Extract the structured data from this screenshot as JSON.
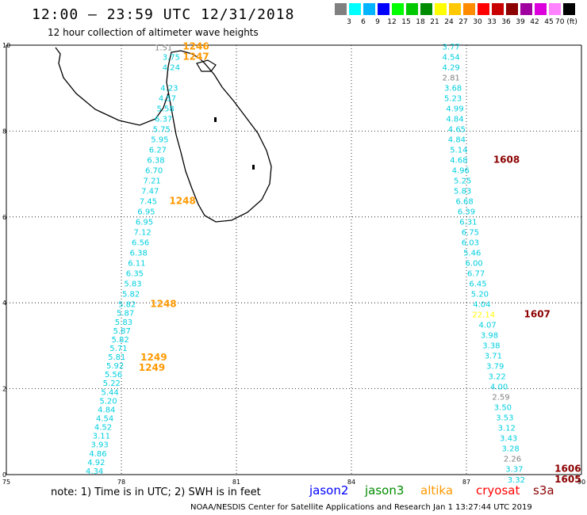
{
  "title": "12:00 – 23:59 UTC 12/31/2018",
  "subtitle": "12 hour collection of altimeter wave heights",
  "scale": {
    "colors": [
      "#808080",
      "#00ffff",
      "#00b4ff",
      "#0000ff",
      "#00ff00",
      "#00c800",
      "#008c00",
      "#ffff00",
      "#ffc800",
      "#ff8c00",
      "#ff0000",
      "#c80000",
      "#8c0000",
      "#a000a0",
      "#dc00dc",
      "#ff82ff",
      "#000000"
    ],
    "labels": [
      "3",
      "6",
      "9",
      "12",
      "15",
      "18",
      "21",
      "24",
      "27",
      "30",
      "33",
      "36",
      "39",
      "42",
      "45",
      "70 (ft)"
    ]
  },
  "map": {
    "lon_ticks": [
      "75",
      "78",
      "81",
      "84",
      "87",
      "90"
    ],
    "lat_ticks": [
      "0",
      "2",
      "4",
      "6",
      "8",
      "10"
    ]
  },
  "tracks": [
    {
      "time": "1246",
      "color": "#ff9900",
      "values": [
        {
          "v": "1.51",
          "lon": 79.1,
          "lat": 9.88,
          "c": "#808080"
        },
        {
          "v": "3.75",
          "lon": 79.3,
          "lat": 9.66,
          "c": "#00cfe0"
        },
        {
          "v": "4.24",
          "lon": 79.3,
          "lat": 9.42,
          "c": "#00cfe0"
        },
        {
          "v": "4.23",
          "lon": 79.25,
          "lat": 8.94,
          "c": "#00cfe0"
        },
        {
          "v": "4.57",
          "lon": 79.2,
          "lat": 8.7,
          "c": "#00cfe0"
        },
        {
          "v": "5.58",
          "lon": 79.15,
          "lat": 8.46,
          "c": "#00cfe0"
        },
        {
          "v": "6.37",
          "lon": 79.1,
          "lat": 8.22,
          "c": "#00cfe0"
        },
        {
          "v": "5.75",
          "lon": 79.05,
          "lat": 7.98,
          "c": "#00cfe0"
        },
        {
          "v": "5.95",
          "lon": 79.0,
          "lat": 7.74,
          "c": "#00cfe0"
        },
        {
          "v": "6.27",
          "lon": 78.95,
          "lat": 7.5,
          "c": "#00cfe0"
        },
        {
          "v": "6.38",
          "lon": 78.9,
          "lat": 7.26,
          "c": "#00cfe0"
        },
        {
          "v": "6.70",
          "lon": 78.85,
          "lat": 7.02,
          "c": "#00cfe0"
        },
        {
          "v": "7.21",
          "lon": 78.8,
          "lat": 6.78,
          "c": "#00cfe0"
        },
        {
          "v": "7.47",
          "lon": 78.75,
          "lat": 6.54,
          "c": "#00cfe0"
        },
        {
          "v": "7.45",
          "lon": 78.7,
          "lat": 6.3,
          "c": "#00cfe0"
        },
        {
          "v": "6.95",
          "lon": 78.65,
          "lat": 6.06,
          "c": "#00cfe0"
        },
        {
          "v": "6.95",
          "lon": 78.6,
          "lat": 5.82,
          "c": "#00cfe0"
        },
        {
          "v": "7.12",
          "lon": 78.55,
          "lat": 5.58,
          "c": "#00cfe0"
        },
        {
          "v": "6.56",
          "lon": 78.5,
          "lat": 5.34,
          "c": "#00cfe0"
        },
        {
          "v": "6.38",
          "lon": 78.45,
          "lat": 5.1,
          "c": "#00cfe0"
        },
        {
          "v": "6.11",
          "lon": 78.4,
          "lat": 4.86,
          "c": "#00cfe0"
        },
        {
          "v": "6.35",
          "lon": 78.35,
          "lat": 4.62,
          "c": "#00cfe0"
        },
        {
          "v": "5.83",
          "lon": 78.3,
          "lat": 4.38,
          "c": "#00cfe0"
        },
        {
          "v": "5.82",
          "lon": 78.25,
          "lat": 4.14,
          "c": "#00cfe0"
        }
      ]
    },
    {
      "time": "1608",
      "color": "#8b0000",
      "values": [
        {
          "v": "3.77",
          "lon": 86.6,
          "lat": 9.9,
          "c": "#00cfe0"
        },
        {
          "v": "4.54",
          "lon": 86.6,
          "lat": 9.66,
          "c": "#00cfe0"
        },
        {
          "v": "4.29",
          "lon": 86.6,
          "lat": 9.42,
          "c": "#00cfe0"
        },
        {
          "v": "2.81",
          "lon": 86.6,
          "lat": 9.18,
          "c": "#808080"
        },
        {
          "v": "3.68",
          "lon": 86.65,
          "lat": 8.94,
          "c": "#00cfe0"
        },
        {
          "v": "5.23",
          "lon": 86.65,
          "lat": 8.7,
          "c": "#00cfe0"
        },
        {
          "v": "4.99",
          "lon": 86.7,
          "lat": 8.46,
          "c": "#00cfe0"
        },
        {
          "v": "4.84",
          "lon": 86.7,
          "lat": 8.22,
          "c": "#00cfe0"
        },
        {
          "v": "4.65",
          "lon": 86.75,
          "lat": 7.98,
          "c": "#00cfe0"
        },
        {
          "v": "4.84",
          "lon": 86.75,
          "lat": 7.74,
          "c": "#00cfe0"
        },
        {
          "v": "5.14",
          "lon": 86.8,
          "lat": 7.5,
          "c": "#00cfe0"
        },
        {
          "v": "4.68",
          "lon": 86.8,
          "lat": 7.26,
          "c": "#00cfe0"
        },
        {
          "v": "4.96",
          "lon": 86.85,
          "lat": 7.02,
          "c": "#00cfe0"
        },
        {
          "v": "5.25",
          "lon": 86.9,
          "lat": 6.78,
          "c": "#00cfe0"
        },
        {
          "v": "5.83",
          "lon": 86.9,
          "lat": 6.54,
          "c": "#00cfe0"
        },
        {
          "v": "6.68",
          "lon": 86.95,
          "lat": 6.3,
          "c": "#00cfe0"
        },
        {
          "v": "6.39",
          "lon": 87.0,
          "lat": 6.06,
          "c": "#00cfe0"
        },
        {
          "v": "6.31",
          "lon": 87.05,
          "lat": 5.82,
          "c": "#00cfe0"
        },
        {
          "v": "6.75",
          "lon": 87.1,
          "lat": 5.58,
          "c": "#00cfe0"
        },
        {
          "v": "6.03",
          "lon": 87.1,
          "lat": 5.34,
          "c": "#00cfe0"
        },
        {
          "v": "5.46",
          "lon": 87.15,
          "lat": 5.1,
          "c": "#00cfe0"
        },
        {
          "v": "6.00",
          "lon": 87.2,
          "lat": 4.86,
          "c": "#00cfe0"
        },
        {
          "v": "6.77",
          "lon": 87.25,
          "lat": 4.62,
          "c": "#00cfe0"
        },
        {
          "v": "6.45",
          "lon": 87.3,
          "lat": 4.38,
          "c": "#00cfe0"
        },
        {
          "v": "5.20",
          "lon": 87.35,
          "lat": 4.14,
          "c": "#00cfe0"
        },
        {
          "v": "4.04",
          "lon": 87.4,
          "lat": 3.9,
          "c": "#00cfe0"
        }
      ]
    },
    {
      "time": "1607",
      "color": "#8b0000",
      "values": [
        {
          "v": "22.14",
          "lon": 87.45,
          "lat": 3.66,
          "c": "#ffff00"
        },
        {
          "v": "4.07",
          "lon": 87.55,
          "lat": 3.42,
          "c": "#00cfe0"
        },
        {
          "v": "3.98",
          "lon": 87.6,
          "lat": 3.18,
          "c": "#00cfe0"
        },
        {
          "v": "3.38",
          "lon": 87.65,
          "lat": 2.94,
          "c": "#00cfe0"
        },
        {
          "v": "3.71",
          "lon": 87.7,
          "lat": 2.7,
          "c": "#00cfe0"
        },
        {
          "v": "3.79",
          "lon": 87.75,
          "lat": 2.46,
          "c": "#00cfe0"
        },
        {
          "v": "3.22",
          "lon": 87.8,
          "lat": 2.22,
          "c": "#00cfe0"
        },
        {
          "v": "4.00",
          "lon": 87.85,
          "lat": 1.98,
          "c": "#00cfe0"
        },
        {
          "v": "2.59",
          "lon": 87.9,
          "lat": 1.74,
          "c": "#808080"
        },
        {
          "v": "3.50",
          "lon": 87.95,
          "lat": 1.5,
          "c": "#00cfe0"
        },
        {
          "v": "3.53",
          "lon": 88.0,
          "lat": 1.26,
          "c": "#00cfe0"
        },
        {
          "v": "3.12",
          "lon": 88.05,
          "lat": 1.02,
          "c": "#00cfe0"
        },
        {
          "v": "3.43",
          "lon": 88.1,
          "lat": 0.78,
          "c": "#00cfe0"
        },
        {
          "v": "3.28",
          "lon": 88.15,
          "lat": 0.54,
          "c": "#00cfe0"
        },
        {
          "v": "2.26",
          "lon": 88.2,
          "lat": 0.3,
          "c": "#808080"
        },
        {
          "v": "3.37",
          "lon": 88.25,
          "lat": 0.06,
          "c": "#00cfe0"
        },
        {
          "v": "3.32",
          "lon": 88.3,
          "lat": -0.18,
          "c": "#00cfe0"
        }
      ]
    }
  ],
  "lower_track_values": [
    "5.82",
    "5.87",
    "5.83",
    "5.87",
    "5.82",
    "5.71",
    "5.81",
    "5.92",
    "5.56",
    "5.22",
    "5.44",
    "5.20",
    "4.84",
    "4.54",
    "4.52",
    "3.11",
    "3.93",
    "4.86",
    "4.92",
    "4.34"
  ],
  "time_labels": [
    {
      "t": "1246",
      "lon": 79.6,
      "lat": 9.9,
      "c": "#ff9900"
    },
    {
      "t": "1247",
      "lon": 79.6,
      "lat": 9.66,
      "c": "#ff9900"
    },
    {
      "t": "1248",
      "lon": 79.25,
      "lat": 6.3,
      "c": "#ff9900"
    },
    {
      "t": "1248",
      "lon": 78.75,
      "lat": 3.9,
      "c": "#ff9900"
    },
    {
      "t": "1249",
      "lon": 78.5,
      "lat": 2.66,
      "c": "#ff9900"
    },
    {
      "t": "1249",
      "lon": 78.45,
      "lat": 2.42,
      "c": "#ff9900"
    },
    {
      "t": "1608",
      "lon": 87.7,
      "lat": 7.26,
      "c": "#8b0000"
    },
    {
      "t": "1607",
      "lon": 88.5,
      "lat": 3.66,
      "c": "#8b0000"
    },
    {
      "t": "1606",
      "lon": 89.3,
      "lat": 0.06,
      "c": "#8b0000"
    },
    {
      "t": "1605",
      "lon": 89.3,
      "lat": -0.18,
      "c": "#8b0000"
    }
  ],
  "note": "note: 1) Time is in UTC; 2) SWH is in feet",
  "satellites": [
    {
      "name": "jason2",
      "color": "#0000ff"
    },
    {
      "name": "jason3",
      "color": "#008c00"
    },
    {
      "name": "altika",
      "color": "#ff9900"
    },
    {
      "name": "cryosat",
      "color": "#ff0000"
    },
    {
      "name": "s3a",
      "color": "#8b0000"
    }
  ],
  "credit": "NOAA/NESDIS Center for Satellite Applications and Research     Jan  1 13:27:44 UTC 2019"
}
